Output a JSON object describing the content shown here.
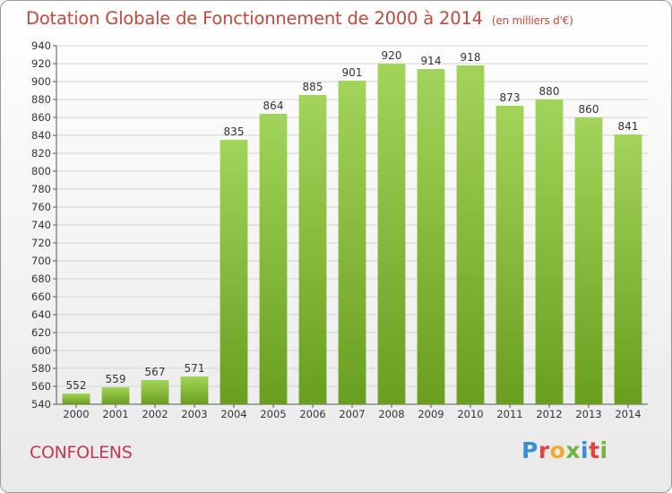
{
  "header": {
    "title": "Dotation Globale de Fonctionnement de 2000 à 2014",
    "units": "(en milliers d'€)"
  },
  "footer": {
    "commune": "CONFOLENS",
    "logo_text": "Proxiti",
    "logo_colors": [
      "#3c8fd1",
      "#e0463c",
      "#f0a830",
      "#73b23e",
      "#3c8fd1",
      "#e0463c",
      "#73b23e"
    ]
  },
  "colors": {
    "title": "#c04a3b",
    "bar_light": "#a3d45a",
    "bar_dark": "#6a9e1e",
    "grid": "#d3d3d3",
    "axis_text": "#333333"
  },
  "chart_data": {
    "type": "bar",
    "title": "Dotation Globale de Fonctionnement de 2000 à 2014",
    "subtitle": "(en milliers d'€)",
    "categories": [
      "2000",
      "2001",
      "2002",
      "2003",
      "2004",
      "2005",
      "2006",
      "2007",
      "2008",
      "2009",
      "2010",
      "2011",
      "2012",
      "2013",
      "2014"
    ],
    "values": [
      552,
      559,
      567,
      571,
      835,
      864,
      885,
      901,
      920,
      914,
      918,
      873,
      880,
      860,
      841
    ],
    "ylim": [
      540,
      940
    ],
    "yticks": [
      540,
      560,
      580,
      600,
      620,
      640,
      660,
      680,
      700,
      720,
      740,
      760,
      780,
      800,
      820,
      840,
      860,
      880,
      900,
      920,
      940
    ],
    "grid": true,
    "data_labels": true
  }
}
